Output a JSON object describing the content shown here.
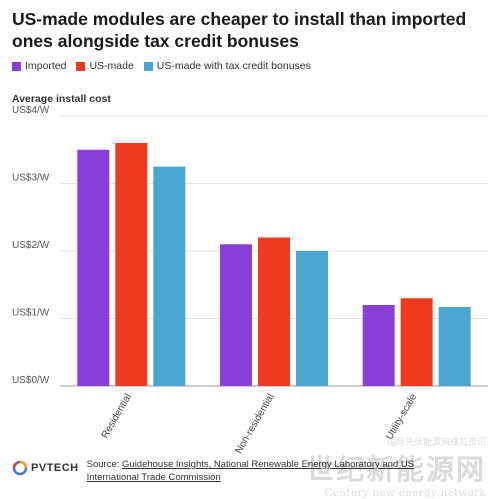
{
  "header": {
    "title": "US-made modules are cheaper to install than imported ones alongside tax credit bonuses"
  },
  "legend": {
    "items": [
      {
        "label": "Imported",
        "color": "#8b3fd9"
      },
      {
        "label": "US-made",
        "color": "#f03a1f"
      },
      {
        "label": "US-made with tax credit bonuses",
        "color": "#4ba6d1"
      }
    ]
  },
  "chart_data": {
    "type": "bar",
    "title": "US-made modules are cheaper to install than imported ones alongside tax credit bonuses",
    "ylabel": "Average install cost",
    "xlabel": "",
    "categories": [
      "Residential",
      "Non-residential",
      "Utility-scale"
    ],
    "series": [
      {
        "name": "Imported",
        "color": "#8b3fd9",
        "values": [
          3.5,
          2.1,
          1.2
        ]
      },
      {
        "name": "US-made",
        "color": "#f03a1f",
        "values": [
          3.6,
          2.2,
          1.3
        ]
      },
      {
        "name": "US-made with tax credit bonuses",
        "color": "#4ba6d1",
        "values": [
          3.25,
          2.0,
          1.17
        ]
      }
    ],
    "ylim": [
      0,
      4
    ],
    "yticks": [
      0,
      1,
      2,
      3,
      4
    ],
    "ytick_labels": [
      "US$0/W",
      "US$1/W",
      "US$2/W",
      "US$3/W",
      "US$4/W"
    ],
    "grid": true,
    "legend_position": "top-left"
  },
  "footer": {
    "logo_text": "PVTECH",
    "source_prefix": "Source: ",
    "source_links": "Guidehouse Insights, National Renewable Energy Laboratory and US International Trade Commission"
  },
  "watermark": {
    "top": "国际光伏能源网络与资讯",
    "big": "世纪新能源网",
    "small": "Century new energy network"
  }
}
